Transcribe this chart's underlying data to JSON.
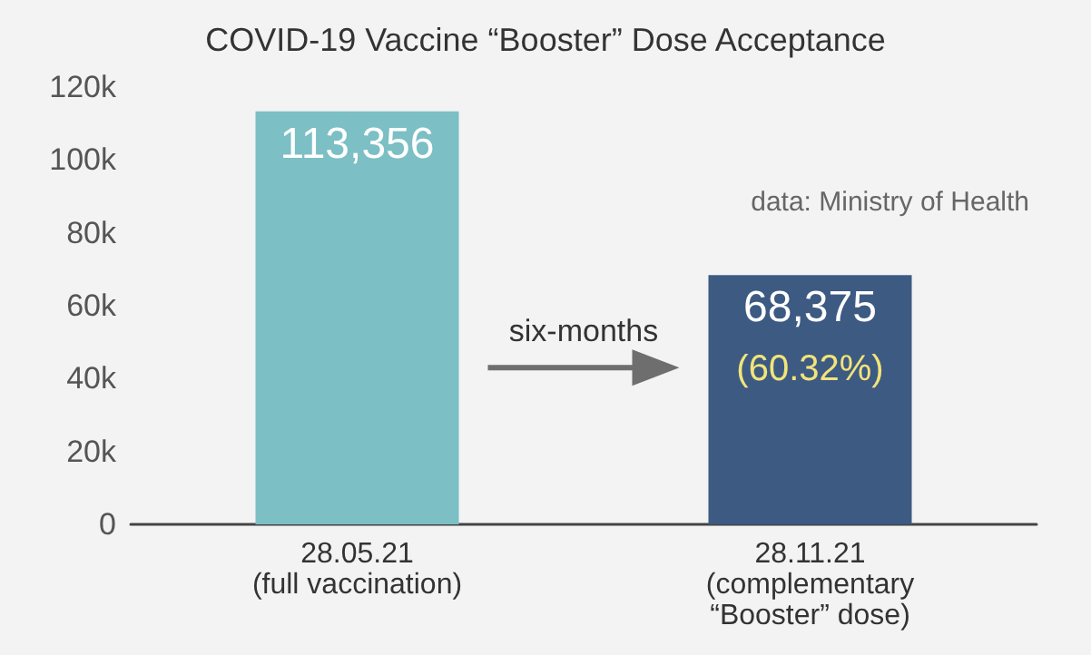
{
  "chart_data": {
    "type": "bar",
    "title": "COVID-19 Vaccine “Booster” Dose Acceptance",
    "categories": [
      "28.05.21\n(full vaccination)",
      "28.11.21\n(complementary\n“Booster” dose)"
    ],
    "values": [
      113356,
      68375
    ],
    "colors": [
      "#7cbfc5",
      "#3c5a82"
    ],
    "value_labels": [
      "113,356",
      "68,375"
    ],
    "ylim": [
      0,
      120000
    ],
    "yticks": [
      {
        "value": 0,
        "label": "0"
      },
      {
        "value": 20000,
        "label": "20k"
      },
      {
        "value": 40000,
        "label": "40k"
      },
      {
        "value": 60000,
        "label": "60k"
      },
      {
        "value": 80000,
        "label": "80k"
      },
      {
        "value": 100000,
        "label": "100k"
      },
      {
        "value": 120000,
        "label": "120k"
      }
    ],
    "annotations": [
      "(60.32%)",
      "six-months",
      "data: Ministry of Health"
    ],
    "grid": false
  }
}
